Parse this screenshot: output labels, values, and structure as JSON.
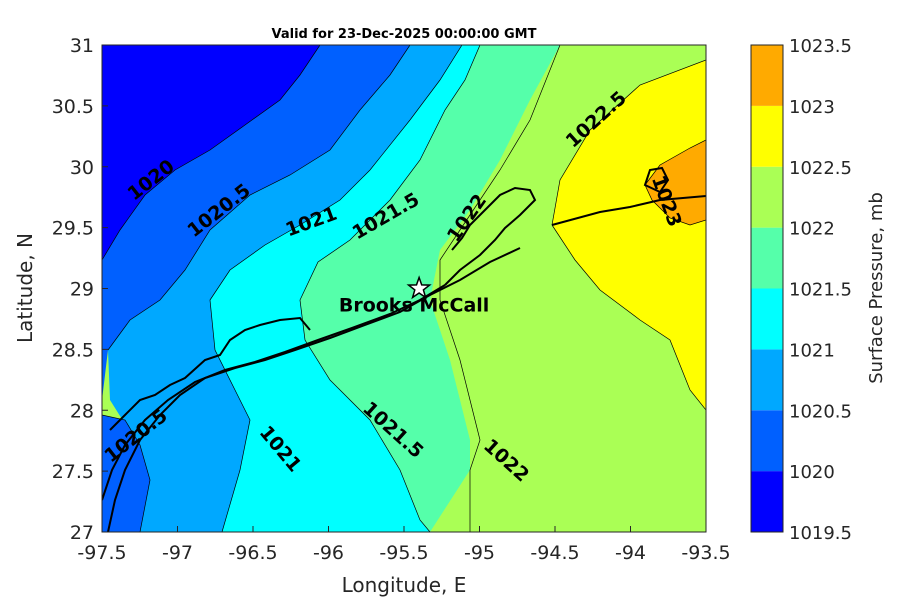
{
  "title": "Valid for 23-Dec-2025 00:00:00 GMT",
  "x_axis": {
    "label": "Longitude, E",
    "range": [
      -97.5,
      -93.5
    ],
    "ticks": [
      "-97.5",
      "-97",
      "-96.5",
      "-96",
      "-95.5",
      "-95",
      "-94.5",
      "-94",
      "-93.5"
    ]
  },
  "y_axis": {
    "label": "Latitude, N",
    "range": [
      27,
      31
    ],
    "ticks": [
      "27",
      "27.5",
      "28",
      "28.5",
      "29",
      "29.5",
      "30",
      "30.5",
      "31"
    ]
  },
  "colorbar": {
    "label": "Surface Pressure, mb",
    "levels": [
      "1019.5",
      "1020",
      "1020.5",
      "1021",
      "1021.5",
      "1022",
      "1022.5",
      "1023",
      "1023.5"
    ],
    "colors": [
      "#0000ff",
      "#0060ff",
      "#00a8ff",
      "#00ffff",
      "#55ffaa",
      "#aaff55",
      "#ffff00",
      "#ffaa00",
      "#ff5500"
    ]
  },
  "station": {
    "name": "Brooks McCall",
    "lon": -95.4,
    "lat": 29.0
  },
  "contour_labels": [
    {
      "text": "1020",
      "lon": -97.15,
      "lat": 29.85
    },
    {
      "text": "1020.5",
      "lon": -96.7,
      "lat": 29.6
    },
    {
      "text": "1021",
      "lon": -96.1,
      "lat": 29.5
    },
    {
      "text": "1021.5",
      "lon": -95.6,
      "lat": 29.55
    },
    {
      "text": "1022",
      "lon": -95.05,
      "lat": 29.55
    },
    {
      "text": "1022.5",
      "lon": -94.2,
      "lat": 30.35
    },
    {
      "text": "1023",
      "lon": -93.8,
      "lat": 29.7
    },
    {
      "text": "1020.5",
      "lon": -97.25,
      "lat": 27.75
    },
    {
      "text": "1021",
      "lon": -96.35,
      "lat": 27.65
    },
    {
      "text": "1021.5",
      "lon": -95.6,
      "lat": 27.8
    },
    {
      "text": "1022",
      "lon": -94.85,
      "lat": 27.55
    }
  ],
  "chart_data": {
    "type": "contour map",
    "title": "Valid for 23-Dec-2025 00:00:00 GMT",
    "xlabel": "Longitude, E",
    "ylabel": "Latitude, N",
    "xlim": [
      -97.5,
      -93.5
    ],
    "ylim": [
      27,
      31
    ],
    "zlabel": "Surface Pressure, mb",
    "zlim": [
      1019.5,
      1023.5
    ],
    "contour_levels": [
      1020,
      1020.5,
      1021,
      1021.5,
      1022,
      1022.5,
      1023
    ],
    "colormap": "jet",
    "marker": {
      "name": "Brooks McCall",
      "lon": -95.4,
      "lat": 29.0,
      "symbol": "star"
    }
  }
}
